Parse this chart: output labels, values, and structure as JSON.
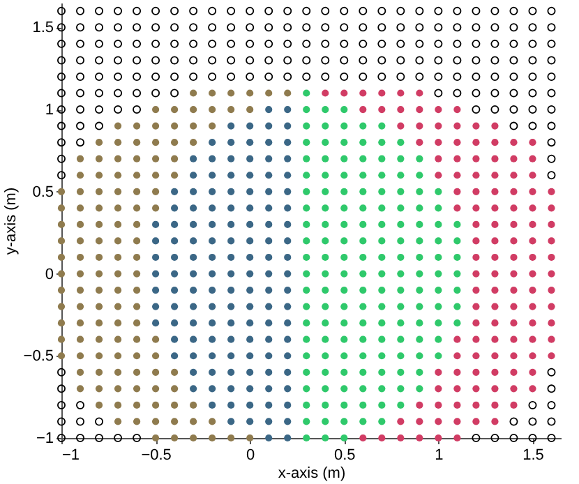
{
  "chart_data": {
    "type": "scatter",
    "xlabel": "x-axis (m)",
    "ylabel": "y-axis (m)",
    "xlim": [
      -1,
      1.65
    ],
    "ylim": [
      -1,
      1.65
    ],
    "xticks": [
      -1,
      -0.5,
      0,
      0.5,
      1,
      1.5
    ],
    "yticks": [
      -1,
      -0.5,
      0,
      0.5,
      1,
      1.5
    ],
    "marker": "circle",
    "grid": false,
    "series": [
      {
        "color": "#000000",
        "x": [
          -1,
          -0.9,
          -0.8,
          -0.7,
          -0.6,
          1.2,
          1.3,
          1.4,
          1.5,
          1.6,
          -1,
          -0.9,
          -0.8,
          1.4,
          1.5,
          1.6,
          -1,
          -0.9,
          1.5,
          1.6,
          -1,
          1.6,
          -1,
          1.6,
          -1,
          1.6,
          -1,
          1.6,
          -1,
          -0.9,
          1.6,
          -1,
          -0.9,
          -0.8,
          1.4,
          1.5,
          1.6,
          -1,
          -0.9,
          -0.8,
          -0.7,
          -0.6,
          1.2,
          1.3,
          1.4,
          1.5,
          1.6,
          -1,
          -0.9,
          -0.8,
          -0.7,
          -0.6,
          -0.5,
          -0.4,
          1,
          1.1,
          1.2,
          1.3,
          1.4,
          1.5,
          1.6,
          -1,
          -0.9,
          -0.8,
          -0.7,
          -0.6,
          -0.5,
          -0.4,
          -0.3,
          -0.2,
          -0.1,
          0,
          0.1,
          0.2,
          0.3,
          0.4,
          0.5,
          0.6,
          0.7,
          0.8,
          0.9,
          1,
          1.1,
          1.2,
          1.3,
          1.4,
          1.5,
          1.6,
          -1,
          -0.9,
          -0.8,
          -0.7,
          -0.6,
          -0.5,
          -0.4,
          -0.3,
          -0.2,
          -0.1,
          0,
          0.1,
          0.2,
          0.3,
          0.4,
          0.5,
          0.6,
          0.7,
          0.8,
          0.9,
          1,
          1.1,
          1.2,
          1.3,
          1.4,
          1.5,
          1.6,
          -1,
          -0.9,
          -0.8,
          -0.7,
          -0.6,
          -0.5,
          -0.4,
          -0.3,
          -0.2,
          -0.1,
          0,
          0.1,
          0.2,
          0.3,
          0.4,
          0.5,
          0.6,
          0.7,
          0.8,
          0.9,
          1,
          1.1,
          1.2,
          1.3,
          1.4,
          1.5,
          1.6,
          -1,
          -0.9,
          -0.8,
          -0.7,
          -0.6,
          -0.5,
          -0.4,
          -0.3,
          -0.2,
          -0.1,
          0,
          0.1,
          0.2,
          0.3,
          0.4,
          0.5,
          0.6,
          0.7,
          0.8,
          0.9,
          1,
          1.1,
          1.2,
          1.3,
          1.4,
          1.5,
          1.6,
          -1,
          -0.9,
          -0.8,
          -0.7,
          -0.6,
          -0.5,
          -0.4,
          -0.3,
          -0.2,
          -0.1,
          0,
          0.1,
          0.2,
          0.3,
          0.4,
          0.5,
          0.6,
          0.7,
          0.8,
          0.9,
          1,
          1.1,
          1.2,
          1.3,
          1.4,
          1.5,
          1.6
        ],
        "values": [
          -1,
          -1,
          -1,
          -1,
          -1,
          -1,
          -1,
          -1,
          -1,
          -1,
          -0.9,
          -0.9,
          -0.9,
          -0.9,
          -0.9,
          -0.9,
          -0.8,
          -0.8,
          -0.8,
          -0.8,
          -0.7,
          -0.7,
          -0.6,
          -0.6,
          0.6,
          0.6,
          0.7,
          0.7,
          0.8,
          0.8,
          0.8,
          0.9,
          0.9,
          0.9,
          0.9,
          0.9,
          0.9,
          1,
          1,
          1,
          1,
          1,
          1,
          1,
          1,
          1,
          1,
          1.1,
          1.1,
          1.1,
          1.1,
          1.1,
          1.1,
          1.1,
          1.1,
          1.1,
          1.1,
          1.1,
          1.1,
          1.1,
          1.1,
          1.2,
          1.2,
          1.2,
          1.2,
          1.2,
          1.2,
          1.2,
          1.2,
          1.2,
          1.2,
          1.2,
          1.2,
          1.2,
          1.2,
          1.2,
          1.2,
          1.2,
          1.2,
          1.2,
          1.2,
          1.2,
          1.2,
          1.2,
          1.2,
          1.2,
          1.2,
          1.2,
          1.3,
          1.3,
          1.3,
          1.3,
          1.3,
          1.3,
          1.3,
          1.3,
          1.3,
          1.3,
          1.3,
          1.3,
          1.3,
          1.3,
          1.3,
          1.3,
          1.3,
          1.3,
          1.3,
          1.3,
          1.3,
          1.3,
          1.3,
          1.3,
          1.3,
          1.3,
          1.3,
          1.4,
          1.4,
          1.4,
          1.4,
          1.4,
          1.4,
          1.4,
          1.4,
          1.4,
          1.4,
          1.4,
          1.4,
          1.4,
          1.4,
          1.4,
          1.4,
          1.4,
          1.4,
          1.4,
          1.4,
          1.4,
          1.4,
          1.4,
          1.4,
          1.4,
          1.4,
          1.4,
          1.5,
          1.5,
          1.5,
          1.5,
          1.5,
          1.5,
          1.5,
          1.5,
          1.5,
          1.5,
          1.5,
          1.5,
          1.5,
          1.5,
          1.5,
          1.5,
          1.5,
          1.5,
          1.5,
          1.5,
          1.5,
          1.5,
          1.5,
          1.5,
          1.5,
          1.5,
          1.5,
          1.6,
          1.6,
          1.6,
          1.6,
          1.6,
          1.6,
          1.6,
          1.6,
          1.6,
          1.6,
          1.6,
          1.6,
          1.6,
          1.6,
          1.6,
          1.6,
          1.6,
          1.6,
          1.6,
          1.6,
          1.6,
          1.6,
          1.6,
          1.6,
          1.6,
          1.6,
          1.6
        ]
      },
      {
        "color": "#8f7b4e",
        "x": [
          -0.5,
          -0.4,
          -0.3,
          -0.2,
          -0.1,
          0,
          -0.7,
          -0.6,
          -0.5,
          -0.4,
          -0.3,
          -0.2,
          -0.8,
          -0.7,
          -0.6,
          -0.5,
          -0.4,
          -0.3,
          -0.9,
          -0.8,
          -0.7,
          -0.6,
          -0.5,
          -0.4,
          -0.9,
          -0.8,
          -0.7,
          -0.6,
          -0.5,
          -0.4,
          -1,
          -0.9,
          -0.8,
          -0.7,
          -0.6,
          -0.5,
          -1,
          -0.9,
          -0.8,
          -0.7,
          -0.6,
          -0.5,
          -1,
          -0.9,
          -0.8,
          -0.7,
          -0.6,
          -1,
          -0.9,
          -0.8,
          -0.7,
          -0.6,
          -1,
          -0.9,
          -0.8,
          -0.7,
          -0.6,
          -1,
          -0.9,
          -0.8,
          -0.7,
          -0.6,
          -1,
          -0.9,
          -0.8,
          -0.7,
          -0.6,
          -1,
          -0.9,
          -0.8,
          -0.7,
          -0.6,
          -1,
          -0.9,
          -0.8,
          -0.7,
          -0.6,
          -1,
          -0.9,
          -0.8,
          -0.7,
          -0.6,
          -0.5,
          -1,
          -0.9,
          -0.8,
          -0.7,
          -0.6,
          -0.5,
          -0.9,
          -0.8,
          -0.7,
          -0.6,
          -0.5,
          -0.4,
          -0.9,
          -0.8,
          -0.7,
          -0.6,
          -0.5,
          -0.4,
          -0.8,
          -0.7,
          -0.6,
          -0.5,
          -0.4,
          -0.3,
          -0.7,
          -0.6,
          -0.5,
          -0.4,
          -0.3,
          -0.2,
          -0.5,
          -0.4,
          -0.3,
          -0.2,
          -0.1,
          0,
          -0.3,
          -0.2,
          -0.1,
          0,
          0.1,
          0.2
        ],
        "values": [
          -1,
          -1,
          -1,
          -1,
          -1,
          -1,
          -0.9,
          -0.9,
          -0.9,
          -0.9,
          -0.9,
          -0.9,
          -0.8,
          -0.8,
          -0.8,
          -0.8,
          -0.8,
          -0.8,
          -0.7,
          -0.7,
          -0.7,
          -0.7,
          -0.7,
          -0.7,
          -0.6,
          -0.6,
          -0.6,
          -0.6,
          -0.6,
          -0.6,
          -0.5,
          -0.5,
          -0.5,
          -0.5,
          -0.5,
          -0.5,
          -0.4,
          -0.4,
          -0.4,
          -0.4,
          -0.4,
          -0.4,
          -0.3,
          -0.3,
          -0.3,
          -0.3,
          -0.3,
          -0.2,
          -0.2,
          -0.2,
          -0.2,
          -0.2,
          -0.1,
          -0.1,
          -0.1,
          -0.1,
          -0.1,
          0,
          0,
          0,
          0,
          0,
          0.1,
          0.1,
          0.1,
          0.1,
          0.1,
          0.2,
          0.2,
          0.2,
          0.2,
          0.2,
          0.3,
          0.3,
          0.3,
          0.3,
          0.3,
          0.4,
          0.4,
          0.4,
          0.4,
          0.4,
          0.4,
          0.5,
          0.5,
          0.5,
          0.5,
          0.5,
          0.5,
          0.6,
          0.6,
          0.6,
          0.6,
          0.6,
          0.6,
          0.7,
          0.7,
          0.7,
          0.7,
          0.7,
          0.7,
          0.8,
          0.8,
          0.8,
          0.8,
          0.8,
          0.8,
          0.9,
          0.9,
          0.9,
          0.9,
          0.9,
          0.9,
          1,
          1,
          1,
          1,
          1,
          1,
          1.1,
          1.1,
          1.1,
          1.1,
          1.1,
          1.1
        ]
      },
      {
        "color": "#3b6786",
        "x": [
          0.1,
          0.2,
          -0.1,
          0,
          0.1,
          0.2,
          -0.2,
          -0.1,
          0,
          0.1,
          0.2,
          -0.3,
          -0.2,
          -0.1,
          0,
          0.1,
          0.2,
          -0.3,
          -0.2,
          -0.1,
          0,
          0.1,
          0.2,
          -0.4,
          -0.3,
          -0.2,
          -0.1,
          0,
          0.1,
          0.2,
          -0.4,
          -0.3,
          -0.2,
          -0.1,
          0,
          0.1,
          0.2,
          -0.5,
          -0.4,
          -0.3,
          -0.2,
          -0.1,
          0,
          0.1,
          0.2,
          -0.5,
          -0.4,
          -0.3,
          -0.2,
          -0.1,
          0,
          0.1,
          0.2,
          -0.5,
          -0.4,
          -0.3,
          -0.2,
          -0.1,
          0,
          0.1,
          0.2,
          -0.5,
          -0.4,
          -0.3,
          -0.2,
          -0.1,
          0,
          0.1,
          0.2,
          -0.5,
          -0.4,
          -0.3,
          -0.2,
          -0.1,
          0,
          0.1,
          0.2,
          -0.5,
          -0.4,
          -0.3,
          -0.2,
          -0.1,
          0,
          0.1,
          0.2,
          -0.5,
          -0.4,
          -0.3,
          -0.2,
          -0.1,
          0,
          0.1,
          0.2,
          -0.4,
          -0.3,
          -0.2,
          -0.1,
          0,
          0.1,
          0.2,
          -0.4,
          -0.3,
          -0.2,
          -0.1,
          0,
          0.1,
          0.2,
          -0.3,
          -0.2,
          -0.1,
          0,
          0.1,
          0.2,
          -0.3,
          -0.2,
          -0.1,
          0,
          0.1,
          0.2,
          -0.2,
          -0.1,
          0,
          0.1,
          0.2,
          -0.1,
          0,
          0.1,
          0.2,
          0.1,
          0.2
        ],
        "values": [
          -1,
          -1,
          -0.9,
          -0.9,
          -0.9,
          -0.9,
          -0.8,
          -0.8,
          -0.8,
          -0.8,
          -0.8,
          -0.7,
          -0.7,
          -0.7,
          -0.7,
          -0.7,
          -0.7,
          -0.6,
          -0.6,
          -0.6,
          -0.6,
          -0.6,
          -0.6,
          -0.5,
          -0.5,
          -0.5,
          -0.5,
          -0.5,
          -0.5,
          -0.5,
          -0.4,
          -0.4,
          -0.4,
          -0.4,
          -0.4,
          -0.4,
          -0.4,
          -0.3,
          -0.3,
          -0.3,
          -0.3,
          -0.3,
          -0.3,
          -0.3,
          -0.3,
          -0.2,
          -0.2,
          -0.2,
          -0.2,
          -0.2,
          -0.2,
          -0.2,
          -0.2,
          -0.1,
          -0.1,
          -0.1,
          -0.1,
          -0.1,
          -0.1,
          -0.1,
          -0.1,
          0,
          0,
          0,
          0,
          0,
          0,
          0,
          0,
          0.1,
          0.1,
          0.1,
          0.1,
          0.1,
          0.1,
          0.1,
          0.1,
          0.2,
          0.2,
          0.2,
          0.2,
          0.2,
          0.2,
          0.2,
          0.2,
          0.3,
          0.3,
          0.3,
          0.3,
          0.3,
          0.3,
          0.3,
          0.3,
          0.4,
          0.4,
          0.4,
          0.4,
          0.4,
          0.4,
          0.4,
          0.5,
          0.5,
          0.5,
          0.5,
          0.5,
          0.5,
          0.5,
          0.6,
          0.6,
          0.6,
          0.6,
          0.6,
          0.6,
          0.7,
          0.7,
          0.7,
          0.7,
          0.7,
          0.7,
          0.8,
          0.8,
          0.8,
          0.8,
          0.8,
          0.9,
          0.9,
          0.9,
          0.9,
          1,
          1
        ]
      },
      {
        "color": "#2fc96b",
        "x": [
          0.3,
          0.4,
          0.5,
          0.3,
          0.4,
          0.5,
          0.6,
          0.7,
          0.3,
          0.4,
          0.5,
          0.6,
          0.7,
          0.8,
          0.3,
          0.4,
          0.5,
          0.6,
          0.7,
          0.8,
          0.9,
          0.3,
          0.4,
          0.5,
          0.6,
          0.7,
          0.8,
          0.9,
          0.3,
          0.4,
          0.5,
          0.6,
          0.7,
          0.8,
          0.9,
          1,
          0.3,
          0.4,
          0.5,
          0.6,
          0.7,
          0.8,
          0.9,
          1,
          0.3,
          0.4,
          0.5,
          0.6,
          0.7,
          0.8,
          0.9,
          1,
          1.1,
          0.3,
          0.4,
          0.5,
          0.6,
          0.7,
          0.8,
          0.9,
          1,
          1.1,
          0.3,
          0.4,
          0.5,
          0.6,
          0.7,
          0.8,
          0.9,
          1,
          1.1,
          0.3,
          0.4,
          0.5,
          0.6,
          0.7,
          0.8,
          0.9,
          1,
          1.1,
          0.3,
          0.4,
          0.5,
          0.6,
          0.7,
          0.8,
          0.9,
          1,
          1.1,
          0.3,
          0.4,
          0.5,
          0.6,
          0.7,
          0.8,
          0.9,
          1,
          1.1,
          0.3,
          0.4,
          0.5,
          0.6,
          0.7,
          0.8,
          0.9,
          1,
          1.1,
          0.3,
          0.4,
          0.5,
          0.6,
          0.7,
          0.8,
          0.9,
          1,
          0.3,
          0.4,
          0.5,
          0.6,
          0.7,
          0.8,
          0.9,
          1,
          0.3,
          0.4,
          0.5,
          0.6,
          0.7,
          0.8,
          0.9,
          0.3,
          0.4,
          0.5,
          0.6,
          0.7,
          0.8,
          0.9,
          0.3,
          0.4,
          0.5,
          0.6,
          0.7,
          0.8,
          0.3,
          0.4,
          0.5,
          0.6,
          0.7,
          0.3,
          0.4,
          0.5,
          0.3
        ],
        "values": [
          -1,
          -1,
          -1,
          -0.9,
          -0.9,
          -0.9,
          -0.9,
          -0.9,
          -0.8,
          -0.8,
          -0.8,
          -0.8,
          -0.8,
          -0.8,
          -0.7,
          -0.7,
          -0.7,
          -0.7,
          -0.7,
          -0.7,
          -0.7,
          -0.6,
          -0.6,
          -0.6,
          -0.6,
          -0.6,
          -0.6,
          -0.6,
          -0.5,
          -0.5,
          -0.5,
          -0.5,
          -0.5,
          -0.5,
          -0.5,
          -0.5,
          -0.4,
          -0.4,
          -0.4,
          -0.4,
          -0.4,
          -0.4,
          -0.4,
          -0.4,
          -0.3,
          -0.3,
          -0.3,
          -0.3,
          -0.3,
          -0.3,
          -0.3,
          -0.3,
          -0.3,
          -0.2,
          -0.2,
          -0.2,
          -0.2,
          -0.2,
          -0.2,
          -0.2,
          -0.2,
          -0.2,
          -0.1,
          -0.1,
          -0.1,
          -0.1,
          -0.1,
          -0.1,
          -0.1,
          -0.1,
          -0.1,
          0,
          0,
          0,
          0,
          0,
          0,
          0,
          0,
          0,
          0.1,
          0.1,
          0.1,
          0.1,
          0.1,
          0.1,
          0.1,
          0.1,
          0.1,
          0.2,
          0.2,
          0.2,
          0.2,
          0.2,
          0.2,
          0.2,
          0.2,
          0.2,
          0.3,
          0.3,
          0.3,
          0.3,
          0.3,
          0.3,
          0.3,
          0.3,
          0.3,
          0.4,
          0.4,
          0.4,
          0.4,
          0.4,
          0.4,
          0.4,
          0.4,
          0.5,
          0.5,
          0.5,
          0.5,
          0.5,
          0.5,
          0.5,
          0.5,
          0.6,
          0.6,
          0.6,
          0.6,
          0.6,
          0.6,
          0.6,
          0.7,
          0.7,
          0.7,
          0.7,
          0.7,
          0.7,
          0.7,
          0.8,
          0.8,
          0.8,
          0.8,
          0.8,
          0.8,
          0.9,
          0.9,
          0.9,
          0.9,
          0.9,
          1,
          1,
          1,
          1.1
        ]
      },
      {
        "color": "#d13c64",
        "x": [
          0.6,
          0.7,
          0.8,
          0.9,
          1,
          1.1,
          0.8,
          0.9,
          1,
          1.1,
          1.2,
          1.3,
          0.9,
          1,
          1.1,
          1.2,
          1.3,
          1.4,
          1,
          1.1,
          1.2,
          1.3,
          1.4,
          1.5,
          1,
          1.1,
          1.2,
          1.3,
          1.4,
          1.5,
          1.1,
          1.2,
          1.3,
          1.4,
          1.5,
          1.6,
          1.1,
          1.2,
          1.3,
          1.4,
          1.5,
          1.6,
          1.2,
          1.3,
          1.4,
          1.5,
          1.6,
          1.2,
          1.3,
          1.4,
          1.5,
          1.6,
          1.2,
          1.3,
          1.4,
          1.5,
          1.6,
          1.2,
          1.3,
          1.4,
          1.5,
          1.6,
          1.2,
          1.3,
          1.4,
          1.5,
          1.6,
          1.2,
          1.3,
          1.4,
          1.5,
          1.6,
          1.2,
          1.3,
          1.4,
          1.5,
          1.6,
          1.1,
          1.2,
          1.3,
          1.4,
          1.5,
          1.6,
          1.1,
          1.2,
          1.3,
          1.4,
          1.5,
          1.6,
          1,
          1.1,
          1.2,
          1.3,
          1.4,
          1.5,
          1,
          1.1,
          1.2,
          1.3,
          1.4,
          1.5,
          0.9,
          1,
          1.1,
          1.2,
          1.3,
          1.4,
          1.5,
          0.8,
          0.9,
          1,
          1.1,
          1.2,
          1.3,
          0.6,
          0.7,
          0.8,
          0.9,
          1,
          1.1,
          0.4,
          0.5,
          0.6,
          0.7,
          0.8,
          0.9
        ],
        "values": [
          -1,
          -1,
          -1,
          -1,
          -1,
          -1,
          -0.9,
          -0.9,
          -0.9,
          -0.9,
          -0.9,
          -0.9,
          -0.8,
          -0.8,
          -0.8,
          -0.8,
          -0.8,
          -0.8,
          -0.7,
          -0.7,
          -0.7,
          -0.7,
          -0.7,
          -0.7,
          -0.6,
          -0.6,
          -0.6,
          -0.6,
          -0.6,
          -0.6,
          -0.5,
          -0.5,
          -0.5,
          -0.5,
          -0.5,
          -0.5,
          -0.4,
          -0.4,
          -0.4,
          -0.4,
          -0.4,
          -0.4,
          -0.3,
          -0.3,
          -0.3,
          -0.3,
          -0.3,
          -0.2,
          -0.2,
          -0.2,
          -0.2,
          -0.2,
          -0.1,
          -0.1,
          -0.1,
          -0.1,
          -0.1,
          0,
          0,
          0,
          0,
          0,
          0.1,
          0.1,
          0.1,
          0.1,
          0.1,
          0.2,
          0.2,
          0.2,
          0.2,
          0.2,
          0.3,
          0.3,
          0.3,
          0.3,
          0.3,
          0.4,
          0.4,
          0.4,
          0.4,
          0.4,
          0.4,
          0.5,
          0.5,
          0.5,
          0.5,
          0.5,
          0.5,
          0.6,
          0.6,
          0.6,
          0.6,
          0.6,
          0.6,
          0.7,
          0.7,
          0.7,
          0.7,
          0.7,
          0.7,
          0.8,
          0.8,
          0.8,
          0.8,
          0.8,
          0.8,
          0.8,
          0.9,
          0.9,
          0.9,
          0.9,
          0.9,
          0.9,
          1,
          1,
          1,
          1,
          1,
          1,
          1.1,
          1.1,
          1.1,
          1.1,
          1.1,
          1.1
        ]
      }
    ]
  }
}
